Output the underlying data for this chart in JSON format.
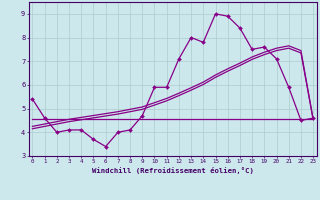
{
  "xlabel": "Windchill (Refroidissement éolien,°C)",
  "x": [
    0,
    1,
    2,
    3,
    4,
    5,
    6,
    7,
    8,
    9,
    10,
    11,
    12,
    13,
    14,
    15,
    16,
    17,
    18,
    19,
    20,
    21,
    22,
    23
  ],
  "y_main": [
    5.4,
    4.6,
    4.0,
    4.1,
    4.1,
    3.7,
    3.4,
    4.0,
    4.1,
    4.7,
    5.9,
    5.9,
    7.1,
    8.0,
    7.8,
    9.0,
    8.9,
    8.4,
    7.5,
    7.6,
    7.1,
    5.9,
    4.5,
    4.6
  ],
  "y_flat": [
    4.55,
    4.55,
    4.55,
    4.55,
    4.55,
    4.55,
    4.55,
    4.55,
    4.55,
    4.55,
    4.55,
    4.55,
    4.55,
    4.55,
    4.55,
    4.55,
    4.55,
    4.55,
    4.55,
    4.55,
    4.55,
    4.55,
    4.55,
    4.55
  ],
  "y_diag1": [
    4.15,
    4.25,
    4.35,
    4.45,
    4.53,
    4.61,
    4.69,
    4.77,
    4.87,
    4.97,
    5.15,
    5.33,
    5.55,
    5.78,
    6.02,
    6.32,
    6.58,
    6.82,
    7.08,
    7.28,
    7.45,
    7.55,
    7.35,
    4.55
  ],
  "y_diag2": [
    4.25,
    4.35,
    4.45,
    4.55,
    4.63,
    4.71,
    4.79,
    4.87,
    4.97,
    5.07,
    5.25,
    5.43,
    5.65,
    5.88,
    6.12,
    6.42,
    6.68,
    6.92,
    7.18,
    7.38,
    7.55,
    7.65,
    7.45,
    4.55
  ],
  "ylim": [
    3.0,
    9.5
  ],
  "yticks": [
    3,
    4,
    5,
    6,
    7,
    8,
    9
  ],
  "line_color": "#880088",
  "bg_color": "#cce8ec",
  "grid_color": "#aacccc",
  "fig_bg": "#cce8ec",
  "border_color": "#440066",
  "label_color": "#440066"
}
